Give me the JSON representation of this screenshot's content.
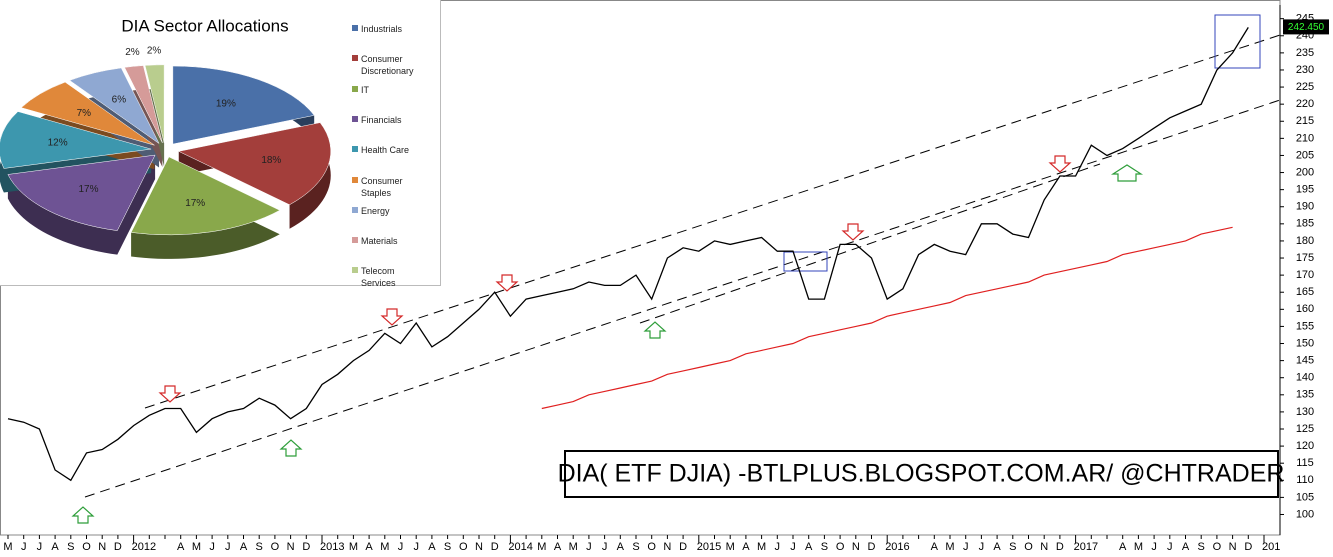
{
  "chart_data": [
    {
      "type": "line",
      "categories": [
        "M",
        "J",
        "J",
        "A",
        "S",
        "O",
        "N",
        "D",
        "2012",
        null,
        null,
        "A",
        "M",
        "J",
        "J",
        "A",
        "S",
        "O",
        "N",
        "D",
        "2013",
        null,
        "M",
        "A",
        "M",
        "J",
        "J",
        "A",
        "S",
        "O",
        "N",
        "D",
        "2014",
        null,
        "M",
        "A",
        "M",
        "J",
        "J",
        "A",
        "S",
        "O",
        "N",
        "D",
        "2015",
        null,
        "M",
        "A",
        "M",
        "J",
        "J",
        "A",
        "S",
        "O",
        "N",
        "D",
        "2016",
        null,
        null,
        "A",
        "M",
        "J",
        "J",
        "A",
        "S",
        "O",
        "N",
        "D",
        "2017",
        null,
        null,
        "A",
        "M",
        "J",
        "J",
        "A",
        "S",
        "O",
        "N",
        "D",
        "201"
      ],
      "series": [
        {
          "color": "#000000",
          "values": [
            128,
            127,
            125,
            113,
            110,
            118,
            119,
            122,
            126,
            129,
            131,
            131,
            124,
            128,
            130,
            131,
            134,
            132,
            128,
            131,
            138,
            141,
            145,
            148,
            153,
            150,
            156,
            149,
            152,
            156,
            160,
            165,
            158,
            163,
            164,
            165,
            166,
            168,
            167,
            167,
            170,
            163,
            175,
            178,
            177,
            180,
            179,
            180,
            181,
            177,
            177,
            163,
            163,
            179,
            179,
            175,
            163,
            166,
            176,
            179,
            177,
            176,
            185,
            185,
            182,
            181,
            192,
            199,
            199,
            208,
            205,
            207,
            210,
            213,
            216,
            218,
            220,
            230,
            235,
            242.45,
            null
          ]
        },
        {
          "color": "#e02020",
          "values": [
            null,
            null,
            null,
            null,
            null,
            null,
            null,
            null,
            null,
            null,
            null,
            null,
            null,
            null,
            null,
            null,
            null,
            null,
            null,
            null,
            null,
            null,
            null,
            null,
            null,
            null,
            null,
            null,
            null,
            null,
            null,
            null,
            null,
            null,
            131,
            132,
            133,
            135,
            136,
            137,
            138,
            139,
            141,
            142,
            143,
            144,
            145,
            147,
            148,
            149,
            150,
            152,
            153,
            154,
            155,
            156,
            158,
            159,
            160,
            161,
            162,
            164,
            165,
            166,
            167,
            168,
            170,
            171,
            172,
            173,
            174,
            176,
            177,
            178,
            179,
            180,
            182,
            183,
            184,
            null,
            null
          ]
        }
      ],
      "last_value_label": "242.450",
      "annotation": "DIA( ETF DJIA) -BTLPLUS.BLOGSPOT.COM.AR/ @CHTRADER",
      "ylim": [
        94,
        249
      ],
      "yticks": [
        100,
        105,
        110,
        115,
        120,
        125,
        130,
        135,
        140,
        145,
        150,
        155,
        160,
        165,
        170,
        175,
        180,
        185,
        190,
        195,
        200,
        205,
        210,
        215,
        220,
        225,
        230,
        235,
        240,
        245
      ],
      "grid": false
    },
    {
      "type": "pie",
      "title": "DIA Sector Allocations",
      "categories": [
        "Industrials",
        "Consumer Discretionary",
        "IT",
        "Financials",
        "Health Care",
        "Consumer Staples",
        "Energy",
        "Materials",
        "Telecom Services"
      ],
      "values": [
        19,
        18,
        17,
        17,
        12,
        7,
        6,
        2,
        2
      ],
      "value_labels": [
        "19%",
        "18%",
        "17%",
        "17%",
        "12%",
        "7%",
        "6%",
        "2%",
        "2%"
      ],
      "colors": [
        "#4a70a8",
        "#a33e3b",
        "#89a84b",
        "#6e5394",
        "#3d97ae",
        "#e0883a",
        "#8fa8d2",
        "#d59b99",
        "#b9cd8e"
      ]
    }
  ]
}
